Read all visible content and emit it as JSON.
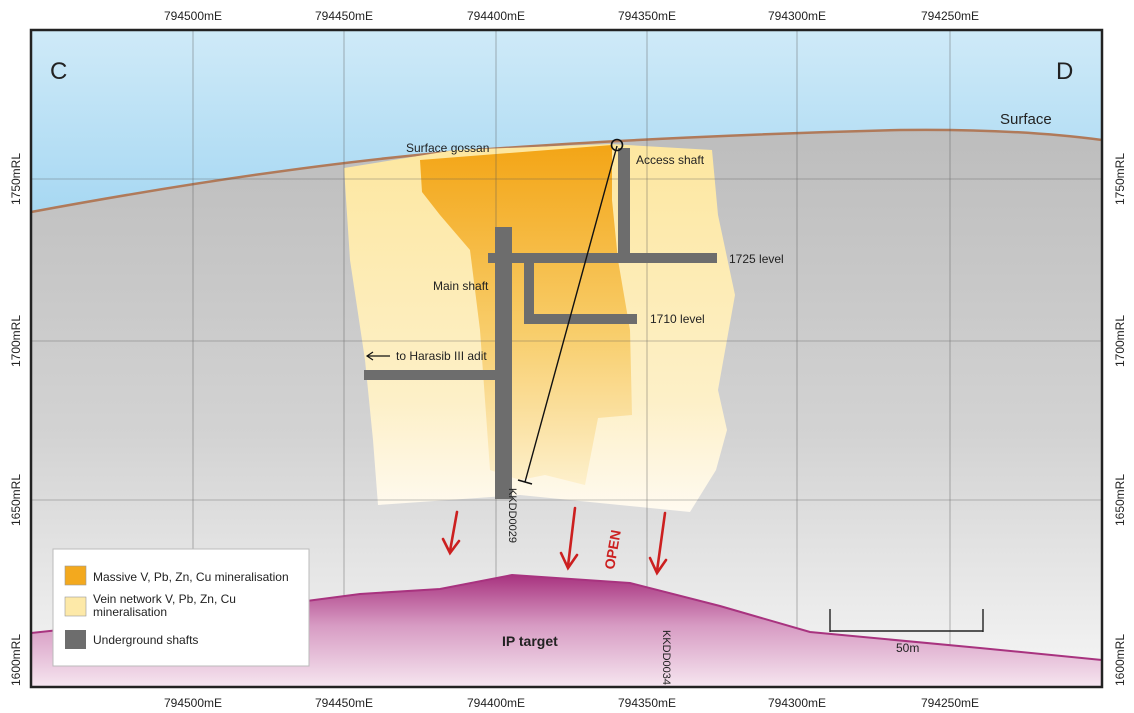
{
  "section": {
    "corner_left": "C",
    "corner_right": "D",
    "surface_label": "Surface",
    "x_ticks_top": [
      "794500mE",
      "794450mE",
      "794400mE",
      "794350mE",
      "794300mE",
      "794250mE"
    ],
    "x_ticks_bottom": [
      "794500mE",
      "794450mE",
      "794400mE",
      "794350mE",
      "794300mE",
      "794250mE"
    ],
    "y_ticks_left": [
      "1750mRL",
      "1700mRL",
      "1650mRL",
      "1600mRL"
    ],
    "y_ticks_right": [
      "1750mRL",
      "1700mRL",
      "1650mRL",
      "1600mRL"
    ]
  },
  "annotations": {
    "surface_gossan": "Surface gossan",
    "access_shaft": "Access shaft",
    "main_shaft": "Main shaft",
    "level_1725": "1725 level",
    "level_1710": "1710 level",
    "harasib_adit": "to Harasib III adit",
    "open": "OPEN",
    "ip_target": "IP target",
    "scale": "50m"
  },
  "drillholes": {
    "kkdd0029": "KKDD0029",
    "kkdd0034": "KKDD0034"
  },
  "legend": {
    "items": [
      {
        "label_lines": [
          "Massive V, Pb, Zn, Cu mineralisation"
        ],
        "color": "#f3a91e"
      },
      {
        "label_lines": [
          "Vein network V, Pb, Zn, Cu",
          "mineralisation"
        ],
        "color": "#fde9a8"
      },
      {
        "label_lines": [
          "Underground shafts"
        ],
        "color": "#6d6d6d"
      }
    ]
  },
  "colors": {
    "sky": "#4db3e8",
    "ground": "#c8c8c8",
    "massive": "#f3a91e",
    "vein": "#fde9a8",
    "shaft": "#6d6d6d",
    "ip_target": "#a8337f",
    "arrow": "#cc2020",
    "surface_line": "#b07a5a"
  }
}
